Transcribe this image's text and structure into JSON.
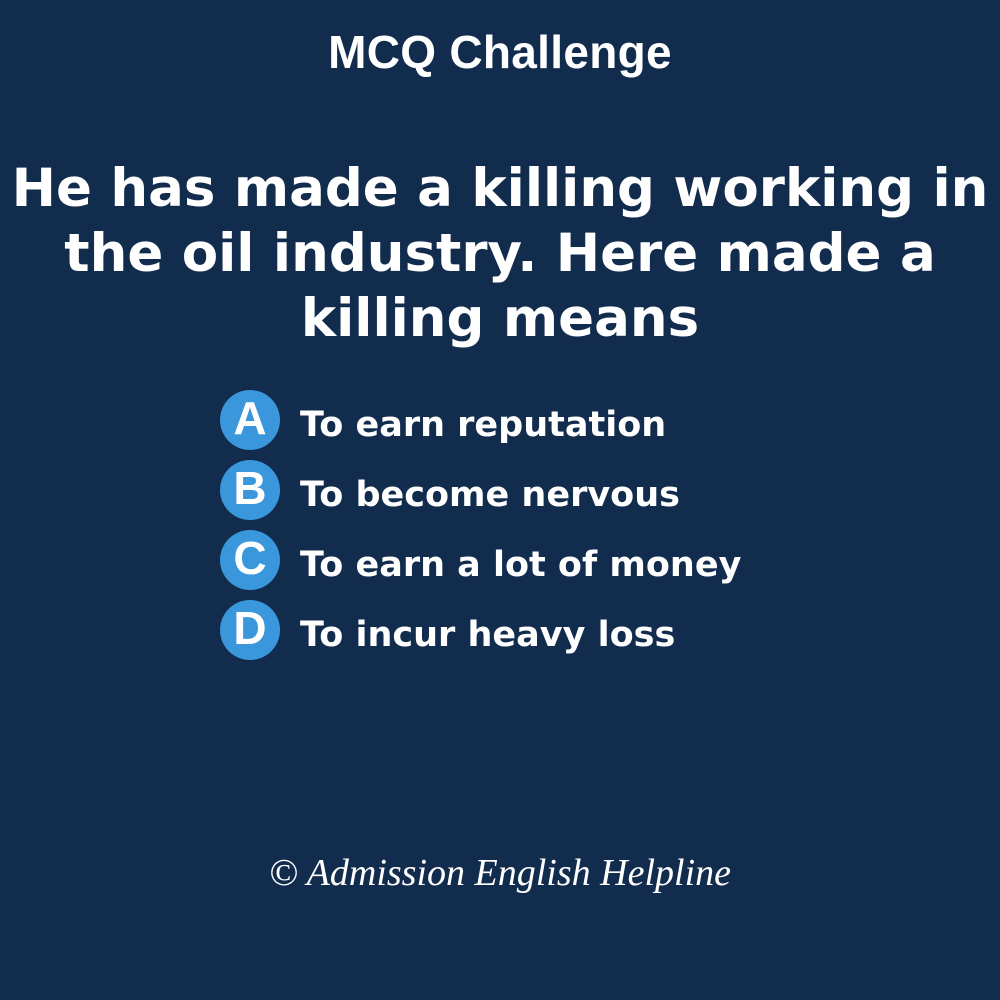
{
  "header": {
    "title": "MCQ Challenge"
  },
  "question": {
    "text": "He has made a killing working in the oil industry. Here made a killing means"
  },
  "options": [
    {
      "letter": "A",
      "text": "To earn reputation"
    },
    {
      "letter": "B",
      "text": "To become nervous"
    },
    {
      "letter": "C",
      "text": "To earn a lot of money"
    },
    {
      "letter": "D",
      "text": "To incur heavy loss"
    }
  ],
  "footer": {
    "copyright": "© Admission English Helpline"
  },
  "colors": {
    "background": "#122c4e",
    "badge": "#3a97db",
    "text": "#ffffff"
  }
}
